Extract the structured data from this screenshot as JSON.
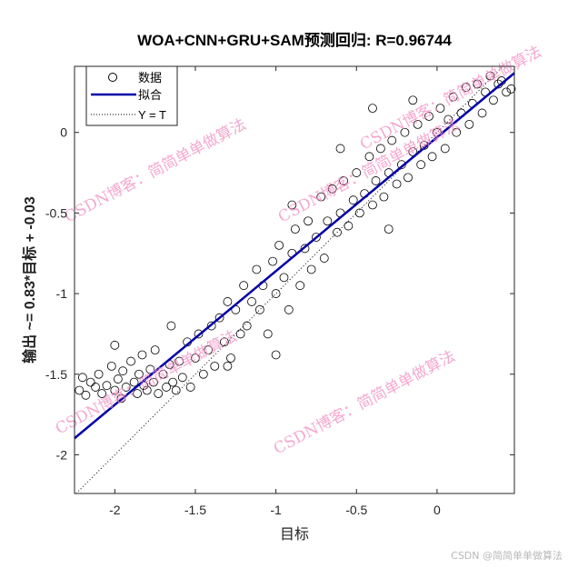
{
  "chart_data": {
    "type": "scatter",
    "title": "WOA+CNN+GRU+SAM预测回归: R=0.96744",
    "xlabel": "目标",
    "ylabel": "输出 ~= 0.83*目标 + -0.03",
    "xlim": [
      -2.25,
      0.48
    ],
    "ylim": [
      -2.24,
      0.41
    ],
    "xticks": [
      -2,
      -1.5,
      -1,
      -0.5,
      0
    ],
    "yticks": [
      0,
      -0.5,
      -1,
      -1.5,
      -2
    ],
    "grid": false,
    "legend": {
      "placement": "top-left",
      "entries": [
        "数据",
        "拟合",
        "Y = T"
      ]
    },
    "fit": {
      "slope": 0.83,
      "intercept": -0.03,
      "color": "#0000aa"
    },
    "identity_line": {
      "style": "dotted",
      "color": "#000000"
    },
    "marker": "open-circle",
    "points": [
      [
        -2.22,
        -1.6
      ],
      [
        -2.2,
        -1.52
      ],
      [
        -2.18,
        -1.63
      ],
      [
        -2.15,
        -1.55
      ],
      [
        -2.12,
        -1.58
      ],
      [
        -2.1,
        -1.5
      ],
      [
        -2.08,
        -1.62
      ],
      [
        -2.05,
        -1.57
      ],
      [
        -2.02,
        -1.45
      ],
      [
        -2.0,
        -1.6
      ],
      [
        -1.98,
        -1.53
      ],
      [
        -1.96,
        -1.65
      ],
      [
        -1.95,
        -1.48
      ],
      [
        -1.93,
        -1.58
      ],
      [
        -1.9,
        -1.42
      ],
      [
        -1.88,
        -1.55
      ],
      [
        -1.86,
        -1.62
      ],
      [
        -1.85,
        -1.5
      ],
      [
        -1.83,
        -1.38
      ],
      [
        -1.82,
        -1.57
      ],
      [
        -1.8,
        -1.6
      ],
      [
        -1.78,
        -1.47
      ],
      [
        -1.76,
        -1.55
      ],
      [
        -1.75,
        -1.35
      ],
      [
        -1.73,
        -1.62
      ],
      [
        -1.7,
        -1.5
      ],
      [
        -1.68,
        -1.58
      ],
      [
        -1.66,
        -1.44
      ],
      [
        -1.64,
        -1.55
      ],
      [
        -1.62,
        -1.6
      ],
      [
        -1.6,
        -1.42
      ],
      [
        -1.58,
        -1.52
      ],
      [
        -1.55,
        -1.3
      ],
      [
        -1.53,
        -1.58
      ],
      [
        -1.5,
        -1.4
      ],
      [
        -1.48,
        -1.25
      ],
      [
        -1.45,
        -1.5
      ],
      [
        -1.42,
        -1.35
      ],
      [
        -1.4,
        -1.2
      ],
      [
        -1.38,
        -1.45
      ],
      [
        -1.35,
        -1.15
      ],
      [
        -1.32,
        -1.3
      ],
      [
        -1.3,
        -1.05
      ],
      [
        -1.28,
        -1.4
      ],
      [
        -1.25,
        -1.1
      ],
      [
        -1.22,
        -1.25
      ],
      [
        -1.2,
        -0.95
      ],
      [
        -1.18,
        -1.2
      ],
      [
        -1.15,
        -1.05
      ],
      [
        -1.12,
        -0.85
      ],
      [
        -1.1,
        -1.1
      ],
      [
        -1.08,
        -0.95
      ],
      [
        -1.05,
        -1.25
      ],
      [
        -1.02,
        -0.8
      ],
      [
        -1.0,
        -1.0
      ],
      [
        -0.98,
        -0.7
      ],
      [
        -0.95,
        -0.9
      ],
      [
        -0.92,
        -1.1
      ],
      [
        -0.9,
        -0.75
      ],
      [
        -0.88,
        -0.6
      ],
      [
        -0.85,
        -0.95
      ],
      [
        -0.82,
        -0.72
      ],
      [
        -0.8,
        -0.55
      ],
      [
        -0.78,
        -0.85
      ],
      [
        -0.75,
        -0.65
      ],
      [
        -0.72,
        -0.4
      ],
      [
        -0.7,
        -0.78
      ],
      [
        -0.68,
        -0.55
      ],
      [
        -0.65,
        -0.35
      ],
      [
        -0.62,
        -0.62
      ],
      [
        -0.6,
        -0.5
      ],
      [
        -0.58,
        -0.3
      ],
      [
        -0.55,
        -0.58
      ],
      [
        -0.52,
        -0.42
      ],
      [
        -0.5,
        -0.25
      ],
      [
        -0.48,
        -0.5
      ],
      [
        -0.45,
        -0.38
      ],
      [
        -0.42,
        -0.15
      ],
      [
        -0.4,
        -0.45
      ],
      [
        -0.38,
        -0.3
      ],
      [
        -0.35,
        -0.1
      ],
      [
        -0.33,
        -0.4
      ],
      [
        -0.3,
        -0.25
      ],
      [
        -0.28,
        -0.05
      ],
      [
        -0.25,
        -0.32
      ],
      [
        -0.22,
        -0.2
      ],
      [
        -0.2,
        0.0
      ],
      [
        -0.18,
        -0.28
      ],
      [
        -0.15,
        -0.12
      ],
      [
        -0.12,
        0.05
      ],
      [
        -0.1,
        -0.2
      ],
      [
        -0.08,
        -0.08
      ],
      [
        -0.05,
        0.1
      ],
      [
        -0.03,
        -0.15
      ],
      [
        0.0,
        0.0
      ],
      [
        0.02,
        0.15
      ],
      [
        0.05,
        -0.1
      ],
      [
        0.07,
        0.08
      ],
      [
        0.1,
        0.22
      ],
      [
        0.12,
        0.0
      ],
      [
        0.15,
        0.12
      ],
      [
        0.18,
        0.28
      ],
      [
        0.2,
        0.05
      ],
      [
        0.22,
        0.18
      ],
      [
        0.25,
        0.3
      ],
      [
        0.28,
        0.12
      ],
      [
        0.3,
        0.25
      ],
      [
        0.33,
        0.35
      ],
      [
        0.35,
        0.2
      ],
      [
        0.38,
        0.3
      ],
      [
        0.4,
        0.32
      ],
      [
        0.43,
        0.25
      ],
      [
        0.46,
        0.27
      ],
      [
        -0.4,
        0.15
      ],
      [
        -0.6,
        -0.1
      ],
      [
        -0.9,
        -0.45
      ],
      [
        -1.0,
        -1.38
      ],
      [
        -1.3,
        -1.45
      ],
      [
        -1.65,
        -1.2
      ],
      [
        -2.0,
        -1.32
      ],
      [
        -0.3,
        -0.6
      ],
      [
        -0.15,
        0.2
      ]
    ]
  },
  "watermark": {
    "text": "CSDN博客：简简单单做算法",
    "color": "#f08cc0"
  },
  "footer": "CSDN @简简单单做算法"
}
